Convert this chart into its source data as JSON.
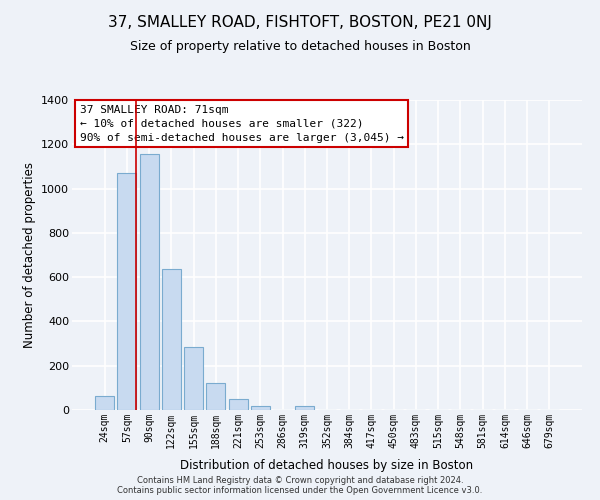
{
  "title": "37, SMALLEY ROAD, FISHTOFT, BOSTON, PE21 0NJ",
  "subtitle": "Size of property relative to detached houses in Boston",
  "xlabel": "Distribution of detached houses by size in Boston",
  "ylabel": "Number of detached properties",
  "bar_labels": [
    "24sqm",
    "57sqm",
    "90sqm",
    "122sqm",
    "155sqm",
    "188sqm",
    "221sqm",
    "253sqm",
    "286sqm",
    "319sqm",
    "352sqm",
    "384sqm",
    "417sqm",
    "450sqm",
    "483sqm",
    "515sqm",
    "548sqm",
    "581sqm",
    "614sqm",
    "646sqm",
    "679sqm"
  ],
  "bar_heights": [
    65,
    1070,
    1155,
    635,
    285,
    120,
    48,
    20,
    0,
    20,
    0,
    0,
    0,
    0,
    0,
    0,
    0,
    0,
    0,
    0,
    0
  ],
  "bar_color": "#c8daf0",
  "bar_edge_color": "#7aabcf",
  "ylim": [
    0,
    1400
  ],
  "yticks": [
    0,
    200,
    400,
    600,
    800,
    1000,
    1200,
    1400
  ],
  "annotation_line1": "37 SMALLEY ROAD: 71sqm",
  "annotation_line2": "← 10% of detached houses are smaller (322)",
  "annotation_line3": "90% of semi-detached houses are larger (3,045) →",
  "red_line_bar_index": 1,
  "footer_line1": "Contains HM Land Registry data © Crown copyright and database right 2024.",
  "footer_line2": "Contains public sector information licensed under the Open Government Licence v3.0.",
  "background_color": "#eef2f8",
  "grid_color": "#ffffff",
  "box_facecolor": "#ffffff",
  "box_edgecolor": "#cc0000",
  "title_fontsize": 11,
  "subtitle_fontsize": 9
}
